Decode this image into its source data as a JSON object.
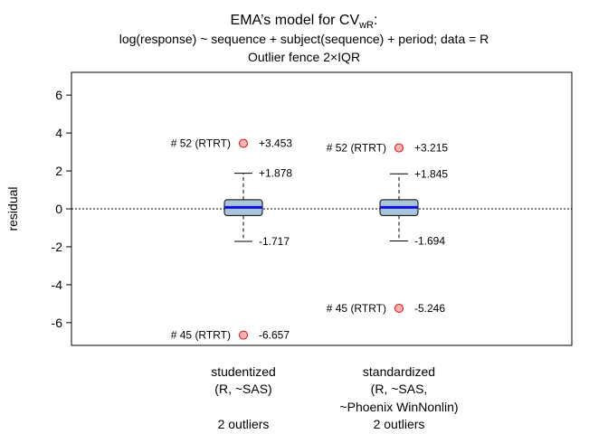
{
  "chart_data": {
    "type": "box",
    "title": {
      "main": "EMA’s model for CV",
      "subscript": "wR",
      "suffix": ":",
      "line2": "log(response) ~ sequence + subject(sequence) + period; data = R",
      "line3": "Outlier fence 2×IQR"
    },
    "ylabel": "residual",
    "ylim": [
      -7.2,
      7.2
    ],
    "yticks": [
      -6,
      -4,
      -2,
      0,
      2,
      4,
      6
    ],
    "reference_line": 0,
    "boxes": [
      {
        "label_lines": [
          "studentized",
          "(R, ~SAS)",
          "",
          "2 outliers"
        ],
        "q1": -0.35,
        "median": 0.08,
        "q3": 0.48,
        "whisker_low": -1.717,
        "whisker_high": 1.878,
        "whisker_low_label": "-1.717",
        "whisker_high_label": "+1.878",
        "outliers": [
          {
            "value": 3.453,
            "id_label": "# 52 (RTRT)",
            "value_label": "+3.453"
          },
          {
            "value": -6.657,
            "id_label": "# 45 (RTRT)",
            "value_label": "-6.657"
          }
        ]
      },
      {
        "label_lines": [
          "standardized",
          "(R, ~SAS,",
          "~Phoenix WinNonlin)",
          "2 outliers"
        ],
        "q1": -0.35,
        "median": 0.08,
        "q3": 0.48,
        "whisker_low": -1.694,
        "whisker_high": 1.845,
        "whisker_low_label": "-1.694",
        "whisker_high_label": "+1.845",
        "outliers": [
          {
            "value": 3.215,
            "id_label": "# 52 (RTRT)",
            "value_label": "+3.215"
          },
          {
            "value": -5.246,
            "id_label": "# 45 (RTRT)",
            "value_label": "-5.246"
          }
        ]
      }
    ],
    "colors": {
      "box_fill": "#a8c5d9",
      "median": "#1010e0",
      "outlier_fill": "#ffb3b3",
      "outlier_stroke": "#d01010"
    }
  }
}
